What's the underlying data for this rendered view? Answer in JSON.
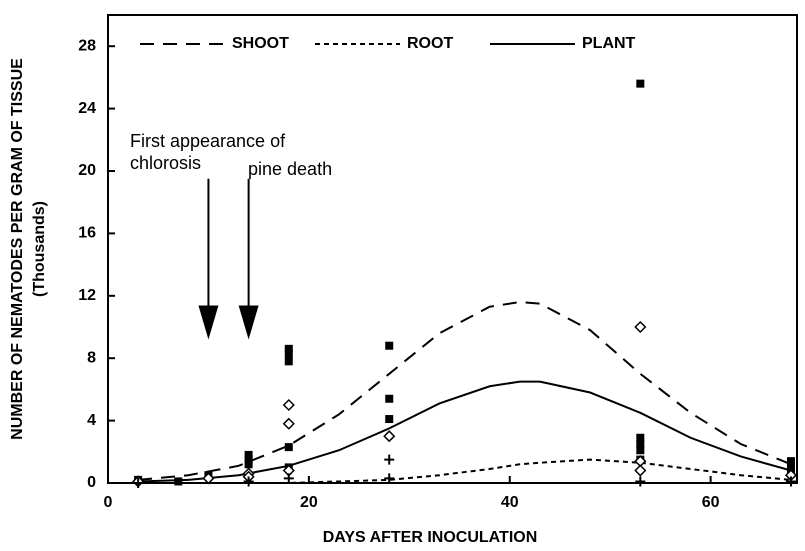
{
  "chart_data": {
    "type": "line",
    "x_label": "DAYS AFTER INOCULATION",
    "y_label": "NUMBER OF NEMATODES PER GRAM OF TISSUE",
    "y_label_sub": "(Thousands)",
    "xlim": [
      0,
      68.6
    ],
    "ylim": [
      0,
      30
    ],
    "xticks": [
      0,
      20,
      40,
      60
    ],
    "yticks": [
      0,
      4,
      8,
      12,
      16,
      20,
      24,
      28
    ],
    "legend": "top",
    "x": [
      3,
      8,
      13,
      18,
      23,
      28,
      33,
      38,
      41,
      43,
      48,
      53,
      58,
      63,
      68
    ],
    "series": [
      {
        "name": "SHOOT",
        "dash": "14 9",
        "color": "#000",
        "values": [
          0.2,
          0.5,
          1.1,
          2.4,
          4.4,
          7.0,
          9.6,
          11.3,
          11.6,
          11.5,
          9.8,
          7.0,
          4.5,
          2.5,
          1.2
        ]
      },
      {
        "name": "ROOT",
        "dash": "5 4",
        "color": "#000",
        "values": [
          0.0,
          0.0,
          0.0,
          0.0,
          0.1,
          0.2,
          0.5,
          0.9,
          1.2,
          1.3,
          1.5,
          1.3,
          0.9,
          0.5,
          0.2
        ]
      },
      {
        "name": "PLANT",
        "dash": "none",
        "color": "#000",
        "values": [
          0.1,
          0.2,
          0.5,
          1.1,
          2.1,
          3.5,
          5.1,
          6.2,
          6.5,
          6.5,
          5.8,
          4.5,
          2.9,
          1.7,
          0.8
        ]
      }
    ],
    "points": [
      {
        "marker": "square",
        "x": [
          3,
          7,
          10,
          14,
          14,
          14,
          18,
          18,
          18,
          18,
          18,
          28,
          28,
          28,
          53,
          53,
          53,
          53,
          53,
          68,
          68,
          68
        ],
        "values": [
          0.2,
          0.1,
          0.5,
          1.8,
          1.5,
          1.2,
          8.6,
          8.3,
          7.8,
          2.3,
          1.0,
          8.8,
          5.4,
          4.1,
          25.6,
          2.9,
          2.5,
          2.1,
          1.5,
          1.4,
          1.0,
          0.8
        ]
      },
      {
        "marker": "diamond",
        "x": [
          3,
          10,
          14,
          14,
          18,
          18,
          18,
          28,
          53,
          53,
          53,
          68
        ],
        "values": [
          0.1,
          0.3,
          0.6,
          0.4,
          5.0,
          3.8,
          0.8,
          3.0,
          10.0,
          1.4,
          0.8,
          0.5
        ]
      },
      {
        "marker": "plus",
        "x": [
          3,
          14,
          18,
          28,
          28,
          53,
          68
        ],
        "values": [
          0,
          0.1,
          0.3,
          1.5,
          0.3,
          0.1,
          0.1
        ]
      }
    ],
    "annotations": [
      {
        "lines": [
          "First appearance of",
          "chlorosis"
        ],
        "x": 10
      },
      {
        "lines": [
          "pine death"
        ],
        "x": 14
      }
    ]
  }
}
